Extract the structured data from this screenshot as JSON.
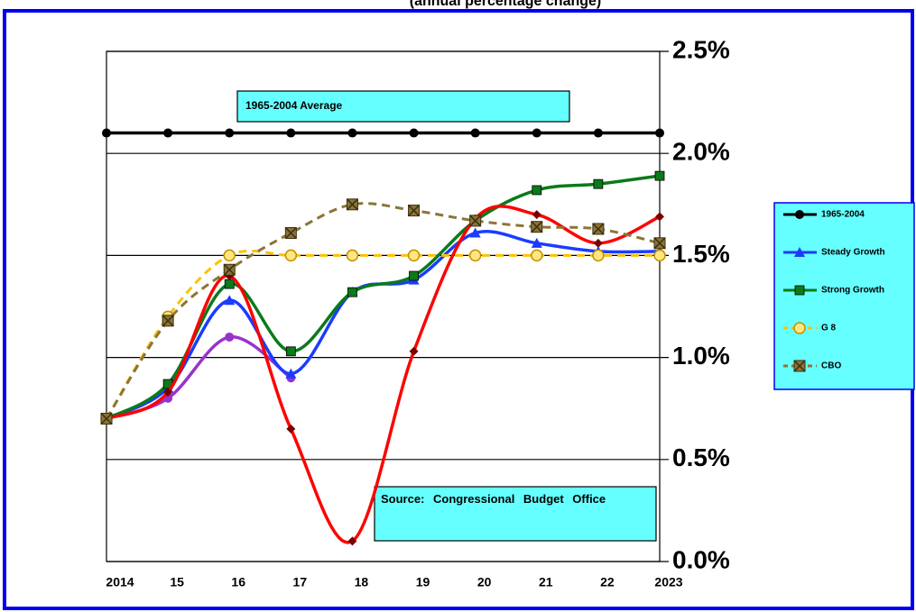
{
  "chart_data": {
    "type": "line",
    "subtitle": "(annual percentage change)",
    "categories": [
      "2014",
      "15",
      "16",
      "17",
      "18",
      "19",
      "20",
      "21",
      "22",
      "2023"
    ],
    "ylim": [
      0,
      2.5
    ],
    "yticks": [
      {
        "value": 0,
        "label": "0.0%"
      },
      {
        "value": 0.5,
        "label": "0.5%"
      },
      {
        "value": 1,
        "label": "1.0%"
      },
      {
        "value": 1.5,
        "label": "1.5%"
      },
      {
        "value": 2,
        "label": "2.0%"
      },
      {
        "value": 2.5,
        "label": "2.5%"
      }
    ],
    "grid": true,
    "legend": "right",
    "annotations": [
      "1965-2004  Average",
      "Source: Congressional Budget Office"
    ],
    "series": [
      {
        "name": "1965-2004",
        "color": "#000000",
        "marker": "circle",
        "values": [
          2.1,
          2.1,
          2.1,
          2.1,
          2.1,
          2.1,
          2.1,
          2.1,
          2.1,
          2.1
        ]
      },
      {
        "color": "#9932cc",
        "marker": "circle",
        "values": [
          0.7,
          0.8,
          1.1,
          0.9,
          null,
          null,
          null,
          null,
          null,
          null
        ]
      },
      {
        "name": "Steady Growth",
        "color": "#1a3cff",
        "marker": "triangle",
        "values": [
          0.7,
          0.85,
          1.28,
          0.92,
          1.32,
          1.38,
          1.61,
          1.56,
          1.52,
          1.52
        ]
      },
      {
        "name": "Strong Growth",
        "color": "#0a7a1a",
        "marker": "square",
        "values": [
          0.7,
          0.87,
          1.36,
          1.03,
          1.32,
          1.4,
          1.67,
          1.82,
          1.85,
          1.89
        ]
      },
      {
        "color": "#ff0000",
        "marker": "diamond",
        "values": [
          0.7,
          0.83,
          1.4,
          0.65,
          0.1,
          1.03,
          1.68,
          1.7,
          1.56,
          1.69
        ]
      },
      {
        "name": "G 8",
        "color": "#ffc000",
        "marker": "ring",
        "dash": true,
        "values": [
          0.7,
          1.2,
          1.5,
          1.5,
          1.5,
          1.5,
          1.5,
          1.5,
          1.5,
          1.5
        ]
      },
      {
        "name": "CBO",
        "color": "#8b7536",
        "marker": "xsquare",
        "dash": true,
        "values": [
          0.7,
          1.18,
          1.43,
          1.61,
          1.75,
          1.72,
          1.67,
          1.64,
          1.63,
          1.56
        ]
      }
    ]
  }
}
